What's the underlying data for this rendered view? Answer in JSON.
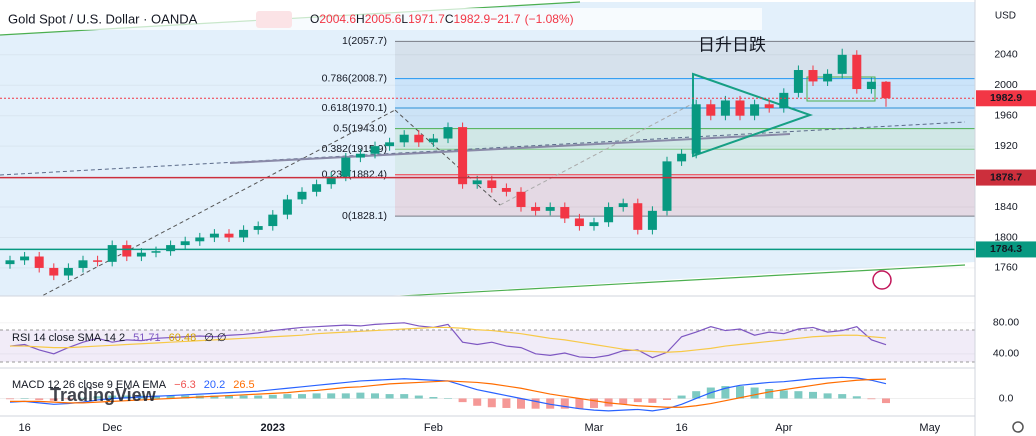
{
  "header": {
    "symbol": "Gold Spot / U.S. Dollar · OANDA",
    "ohlc_labels": [
      "O",
      "H",
      "L",
      "C"
    ],
    "ohlc_values": [
      2004.6,
      2005.6,
      1971.7,
      1982.9
    ],
    "change": -21.7,
    "change_label": "−21.7",
    "change_pct": -1.08,
    "change_pct_label": "(−1.08%)"
  },
  "watermark": "TradingView",
  "chart_data": [
    {
      "type": "candlestick",
      "axis_unit": "USD",
      "annotation": "日升日跌",
      "categories": [
        null,
        "16",
        null,
        null,
        null,
        null,
        null,
        "Dec",
        null,
        null,
        null,
        null,
        null,
        null,
        null,
        null,
        null,
        null,
        "2023",
        null,
        null,
        null,
        null,
        null,
        null,
        null,
        null,
        null,
        null,
        "Feb",
        null,
        null,
        null,
        null,
        null,
        null,
        null,
        null,
        null,
        null,
        "Mar",
        null,
        null,
        null,
        null,
        null,
        "16",
        null,
        null,
        null,
        null,
        null,
        null,
        "Apr",
        null,
        null,
        null,
        null,
        null,
        null,
        null,
        null,
        null,
        "May",
        null,
        null,
        null
      ],
      "open": [
        1765,
        1770,
        1775,
        1760,
        1750,
        1760,
        1770,
        1768,
        1790,
        1775,
        1780,
        1782,
        1790,
        1795,
        1800,
        1805,
        1800,
        1810,
        1815,
        1830,
        1850,
        1860,
        1870,
        1880,
        1905,
        1910,
        1920,
        1925,
        1935,
        1925,
        1930,
        1945,
        1870,
        1875,
        1865,
        1860,
        1840,
        1835,
        1840,
        1825,
        1815,
        1820,
        1840,
        1845,
        1810,
        1835,
        1900,
        1910,
        1975,
        1960,
        1980,
        1960,
        1975,
        1970,
        1990,
        2020,
        2005,
        2015,
        2040,
        1995,
        2004.6,
        null,
        null,
        null,
        null,
        null,
        null
      ],
      "high": [
        1776,
        1781,
        1781,
        1766,
        1766,
        1776,
        1776,
        1796,
        1796,
        1786,
        1788,
        1796,
        1801,
        1806,
        1811,
        1811,
        1816,
        1821,
        1836,
        1856,
        1866,
        1876,
        1886,
        1911,
        1916,
        1926,
        1931,
        1941,
        1941,
        1936,
        1951,
        1951,
        1881,
        1881,
        1871,
        1866,
        1846,
        1846,
        1846,
        1831,
        1826,
        1846,
        1851,
        1851,
        1841,
        1906,
        1916,
        1981,
        1981,
        1986,
        1986,
        1981,
        1981,
        1996,
        2026,
        2026,
        2021,
        2048,
        2046,
        2010,
        2005.6,
        null,
        null,
        null,
        null,
        null,
        null
      ],
      "low": [
        1759,
        1764,
        1754,
        1744,
        1744,
        1754,
        1762,
        1762,
        1769,
        1769,
        1774,
        1776,
        1784,
        1789,
        1794,
        1794,
        1794,
        1804,
        1809,
        1824,
        1844,
        1854,
        1864,
        1874,
        1899,
        1904,
        1914,
        1919,
        1919,
        1919,
        1924,
        1864,
        1864,
        1859,
        1854,
        1834,
        1829,
        1829,
        1819,
        1809,
        1809,
        1814,
        1834,
        1804,
        1804,
        1829,
        1894,
        1904,
        1954,
        1954,
        1954,
        1954,
        1964,
        1964,
        1984,
        1999,
        1999,
        2009,
        1989,
        1989,
        1971.7,
        null,
        null,
        null,
        null,
        null,
        null
      ],
      "close": [
        1770,
        1775,
        1760,
        1750,
        1760,
        1770,
        1768,
        1790,
        1775,
        1780,
        1782,
        1790,
        1795,
        1800,
        1805,
        1800,
        1810,
        1815,
        1830,
        1850,
        1860,
        1870,
        1880,
        1905,
        1910,
        1920,
        1925,
        1935,
        1925,
        1930,
        1945,
        1870,
        1875,
        1865,
        1860,
        1840,
        1835,
        1840,
        1825,
        1815,
        1820,
        1840,
        1845,
        1810,
        1835,
        1900,
        1910,
        1975,
        1960,
        1980,
        1960,
        1975,
        1970,
        1990,
        2020,
        2005,
        2015,
        2040,
        1995,
        2004.6,
        1982.9,
        null,
        null,
        null,
        null,
        null,
        null
      ],
      "up_color": "#089981",
      "down_color": "#f23645",
      "ylim": [
        1731,
        2112
      ],
      "yticks": [
        2040,
        2000,
        1960,
        1920,
        1840,
        1800,
        1760
      ],
      "price_lines": [
        {
          "value": 1982.9,
          "color": "#f23645"
        },
        {
          "value": 1878.7,
          "color": "#cc2f3c"
        },
        {
          "value": 1784.3,
          "color": "#089981"
        }
      ],
      "fib_levels": [
        {
          "label": "1(2057.7)",
          "value": 2057.7,
          "color": "#787b86"
        },
        {
          "label": "0.786(2008.7)",
          "value": 2008.7,
          "color": "#2196f3"
        },
        {
          "label": "0.618(1970.1)",
          "value": 1970.1,
          "color": "#2b8fd6"
        },
        {
          "label": "0.5(1943.0)",
          "value": 1943.0,
          "color": "#4caf50"
        },
        {
          "label": "0.382(1915.9)",
          "value": 1915.9,
          "color": "#81c784"
        },
        {
          "label": "0.236(1882.4)",
          "value": 1882.4,
          "color": "#f23645"
        },
        {
          "label": "0(1828.1)",
          "value": 1828.1,
          "color": "#787b86"
        }
      ]
    },
    {
      "type": "line",
      "title": "RSI 14 close SMA 14 2",
      "legend_values": [
        51.71,
        60.48
      ],
      "legend_extra": "∅ ∅",
      "series": [
        {
          "color": "#7e57c2",
          "values": [
            50,
            52,
            45,
            40,
            48,
            55,
            60,
            55,
            58,
            57,
            60,
            61,
            62,
            63,
            62,
            64,
            65,
            67,
            70,
            72,
            74,
            75,
            76,
            77,
            76,
            78,
            79,
            80,
            76,
            74,
            78,
            55,
            52,
            55,
            50,
            48,
            40,
            38,
            41,
            36,
            35,
            38,
            44,
            45,
            35,
            42,
            62,
            68,
            75,
            70,
            72,
            64,
            68,
            66,
            72,
            74,
            68,
            70,
            75,
            58,
            51.71,
            null,
            null,
            null,
            null,
            null,
            null
          ]
        },
        {
          "color": "#f7c948",
          "values": [
            50,
            50,
            49,
            48,
            48,
            49,
            50,
            51,
            52,
            53,
            54,
            55,
            56,
            57,
            58,
            59,
            60,
            61,
            62,
            63,
            64,
            66,
            67,
            68,
            69,
            70,
            71,
            72,
            73,
            74,
            74,
            73,
            71,
            70,
            68,
            66,
            63,
            60,
            58,
            55,
            52,
            49,
            46,
            44,
            43,
            42,
            43,
            45,
            47,
            50,
            52,
            54,
            56,
            58,
            60,
            62,
            63,
            64,
            64,
            62,
            60.48,
            null,
            null,
            null,
            null,
            null,
            null
          ]
        }
      ],
      "ylim": [
        23,
        112
      ],
      "yticks": [
        {
          "value": 80,
          "label": "80.00"
        },
        {
          "value": 40,
          "label": "40.00"
        }
      ]
    },
    {
      "type": "macd",
      "title": "MACD 12 26 close 9 EMA EMA",
      "legend_values": [
        -6.3,
        20.2,
        26.5
      ],
      "value_labels": [
        "−6.3",
        "20.2",
        "26.5"
      ],
      "histogram": [
        -1,
        0,
        -2,
        -3,
        -1,
        1,
        3,
        4,
        4,
        4,
        4,
        4,
        4,
        4,
        4,
        4,
        4,
        4,
        5,
        6,
        6,
        7,
        7,
        7,
        8,
        7,
        6,
        6,
        4,
        2,
        0,
        -5,
        -10,
        -12,
        -13,
        -14,
        -14,
        -14,
        -14,
        -14,
        -13,
        -11,
        -8,
        -5,
        -6,
        -2,
        4,
        10,
        15,
        17,
        17,
        15,
        13,
        11,
        10,
        9,
        7,
        6,
        3,
        -1,
        -6.3,
        null,
        null,
        null,
        null,
        null,
        null
      ],
      "hist_colors": [
        "#26a69a",
        "#ef5350"
      ],
      "series": [
        {
          "color": "#2962ff",
          "values": [
            -5,
            -4,
            -6,
            -8,
            -7,
            -5,
            -2,
            0,
            1,
            2,
            3,
            4,
            5,
            6,
            7,
            8,
            9,
            10,
            12,
            14,
            16,
            18,
            20,
            22,
            24,
            25,
            26,
            27,
            26,
            25,
            24,
            18,
            12,
            8,
            4,
            0,
            -4,
            -8,
            -11,
            -14,
            -16,
            -17,
            -16,
            -15,
            -17,
            -14,
            -8,
            0,
            8,
            14,
            18,
            20,
            22,
            23,
            25,
            27,
            28,
            29,
            28,
            25,
            20.2,
            null,
            null,
            null,
            null,
            null,
            null
          ]
        },
        {
          "color": "#ff6d00",
          "values": [
            -4,
            -4,
            -4,
            -5,
            -6,
            -6,
            -5,
            -4,
            -3,
            -2,
            -1,
            0,
            1,
            2,
            3,
            4,
            5,
            6,
            7,
            8,
            10,
            11,
            13,
            15,
            16,
            18,
            20,
            21,
            22,
            23,
            24,
            23,
            22,
            20,
            17,
            14,
            10,
            6,
            3,
            0,
            -3,
            -6,
            -8,
            -10,
            -11,
            -12,
            -12,
            -10,
            -7,
            -3,
            1,
            5,
            9,
            12,
            15,
            18,
            21,
            23,
            25,
            26,
            26.5,
            null,
            null,
            null,
            null,
            null,
            null
          ]
        }
      ],
      "ylim": [
        -24,
        39
      ],
      "yticks": [
        {
          "value": 0,
          "label": "0.0"
        }
      ]
    }
  ]
}
